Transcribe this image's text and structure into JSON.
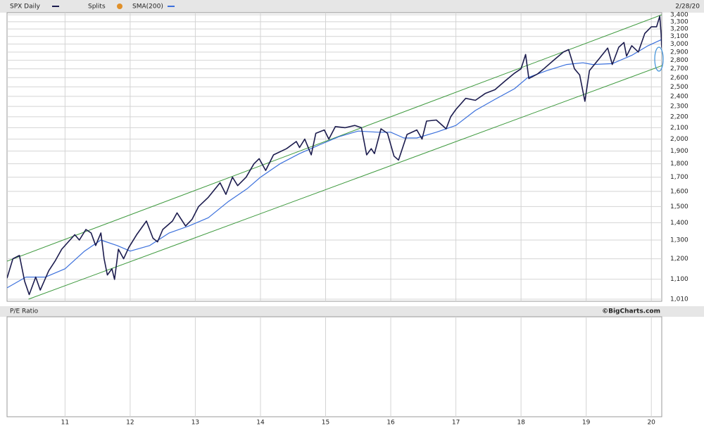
{
  "chart_data": {
    "type": "line",
    "date": "2/28/20",
    "splits_label": "Splits",
    "log_scale": true,
    "grid": true,
    "xlim": [
      2010.11,
      2020.16
    ],
    "xticks": [
      {
        "value": 2011,
        "label": "11"
      },
      {
        "value": 2012,
        "label": "12"
      },
      {
        "value": 2013,
        "label": "13"
      },
      {
        "value": 2014,
        "label": "14"
      },
      {
        "value": 2015,
        "label": "15"
      },
      {
        "value": 2016,
        "label": "16"
      },
      {
        "value": 2017,
        "label": "17"
      },
      {
        "value": 2018,
        "label": "18"
      },
      {
        "value": 2019,
        "label": "19"
      },
      {
        "value": 2020,
        "label": "20"
      }
    ],
    "ylim": [
      1010,
      3400
    ],
    "yticks": [
      {
        "value": 1010,
        "label": "1,010"
      },
      {
        "value": 1100,
        "label": "1,100"
      },
      {
        "value": 1200,
        "label": "1,200"
      },
      {
        "value": 1300,
        "label": "1,300"
      },
      {
        "value": 1400,
        "label": "1,400"
      },
      {
        "value": 1500,
        "label": "1,500"
      },
      {
        "value": 1600,
        "label": "1,600"
      },
      {
        "value": 1700,
        "label": "1,700"
      },
      {
        "value": 1800,
        "label": "1,800"
      },
      {
        "value": 1900,
        "label": "1,900"
      },
      {
        "value": 2000,
        "label": "2,000"
      },
      {
        "value": 2100,
        "label": "2,100"
      },
      {
        "value": 2200,
        "label": "2,200"
      },
      {
        "value": 2300,
        "label": "2,300"
      },
      {
        "value": 2400,
        "label": "2,400"
      },
      {
        "value": 2500,
        "label": "2,500"
      },
      {
        "value": 2600,
        "label": "2,600"
      },
      {
        "value": 2700,
        "label": "2,700"
      },
      {
        "value": 2800,
        "label": "2,800"
      },
      {
        "value": 2900,
        "label": "2,900"
      },
      {
        "value": 3000,
        "label": "3,000"
      },
      {
        "value": 3100,
        "label": "3,100"
      },
      {
        "value": 3200,
        "label": "3,200"
      },
      {
        "value": 3300,
        "label": "3,300"
      },
      {
        "value": 3400,
        "label": "3,400"
      }
    ],
    "series": [
      {
        "name": "SPX Daily",
        "color": "#1c1c4e",
        "x": [
          2010.11,
          2010.2,
          2010.3,
          2010.38,
          2010.45,
          2010.55,
          2010.62,
          2010.75,
          2010.85,
          2010.95,
          2011.05,
          2011.15,
          2011.22,
          2011.32,
          2011.4,
          2011.47,
          2011.55,
          2011.6,
          2011.65,
          2011.72,
          2011.76,
          2011.82,
          2011.9,
          2011.98,
          2012.1,
          2012.25,
          2012.35,
          2012.42,
          2012.5,
          2012.65,
          2012.72,
          2012.85,
          2012.95,
          2013.05,
          2013.2,
          2013.38,
          2013.47,
          2013.57,
          2013.65,
          2013.78,
          2013.9,
          2013.98,
          2014.08,
          2014.2,
          2014.4,
          2014.55,
          2014.6,
          2014.68,
          2014.78,
          2014.85,
          2014.98,
          2015.05,
          2015.15,
          2015.3,
          2015.45,
          2015.55,
          2015.63,
          2015.7,
          2015.75,
          2015.85,
          2015.95,
          2016.05,
          2016.12,
          2016.25,
          2016.4,
          2016.48,
          2016.55,
          2016.7,
          2016.85,
          2016.92,
          2017.0,
          2017.15,
          2017.3,
          2017.45,
          2017.6,
          2017.75,
          2017.9,
          2018.0,
          2018.07,
          2018.12,
          2018.25,
          2018.35,
          2018.5,
          2018.65,
          2018.73,
          2018.82,
          2018.9,
          2018.98,
          2019.05,
          2019.2,
          2019.33,
          2019.4,
          2019.5,
          2019.58,
          2019.62,
          2019.7,
          2019.8,
          2019.9,
          2020.0,
          2020.08,
          2020.13,
          2020.15,
          2020.16
        ],
        "values": [
          1105,
          1200,
          1217,
          1090,
          1030,
          1110,
          1050,
          1140,
          1190,
          1250,
          1290,
          1330,
          1300,
          1360,
          1340,
          1270,
          1340,
          1200,
          1120,
          1150,
          1099,
          1250,
          1200,
          1260,
          1330,
          1410,
          1310,
          1290,
          1360,
          1410,
          1460,
          1380,
          1420,
          1500,
          1560,
          1660,
          1580,
          1700,
          1640,
          1700,
          1800,
          1840,
          1750,
          1870,
          1920,
          1980,
          1930,
          2000,
          1870,
          2050,
          2080,
          2000,
          2110,
          2100,
          2120,
          2100,
          1870,
          1920,
          1880,
          2090,
          2050,
          1860,
          1829,
          2040,
          2080,
          2000,
          2160,
          2170,
          2090,
          2200,
          2270,
          2380,
          2360,
          2430,
          2470,
          2560,
          2650,
          2700,
          2870,
          2590,
          2640,
          2700,
          2800,
          2900,
          2930,
          2700,
          2630,
          2350,
          2680,
          2820,
          2950,
          2750,
          2960,
          3020,
          2850,
          2980,
          2900,
          3140,
          3230,
          3230,
          3380,
          3130,
          2954
        ]
      },
      {
        "name": "SMA(200)",
        "color": "#3b70dc",
        "x": [
          2010.11,
          2010.4,
          2010.7,
          2011.0,
          2011.3,
          2011.55,
          2011.8,
          2012.0,
          2012.3,
          2012.6,
          2012.9,
          2013.2,
          2013.5,
          2013.8,
          2014.0,
          2014.3,
          2014.6,
          2014.9,
          2015.2,
          2015.5,
          2015.8,
          2016.0,
          2016.2,
          2016.4,
          2016.7,
          2017.0,
          2017.3,
          2017.6,
          2017.9,
          2018.1,
          2018.4,
          2018.7,
          2018.95,
          2019.1,
          2019.4,
          2019.7,
          2019.95,
          2020.16
        ],
        "values": [
          1060,
          1110,
          1110,
          1150,
          1240,
          1300,
          1270,
          1240,
          1270,
          1340,
          1380,
          1430,
          1530,
          1620,
          1700,
          1800,
          1880,
          1950,
          2020,
          2070,
          2060,
          2060,
          2010,
          2010,
          2060,
          2120,
          2260,
          2370,
          2480,
          2600,
          2680,
          2750,
          2770,
          2750,
          2760,
          2860,
          2980,
          3060
        ]
      }
    ],
    "trendlines": [
      {
        "color": "#3f9a3f",
        "x": [
          2010.11,
          2020.16
        ],
        "values": [
          1188,
          3400
        ]
      },
      {
        "color": "#3f9a3f",
        "x": [
          2010.44,
          2020.16
        ],
        "values": [
          1010,
          2735
        ]
      }
    ],
    "pe_panel_title": "P/E Ratio",
    "credit": "©BigCharts.com"
  }
}
